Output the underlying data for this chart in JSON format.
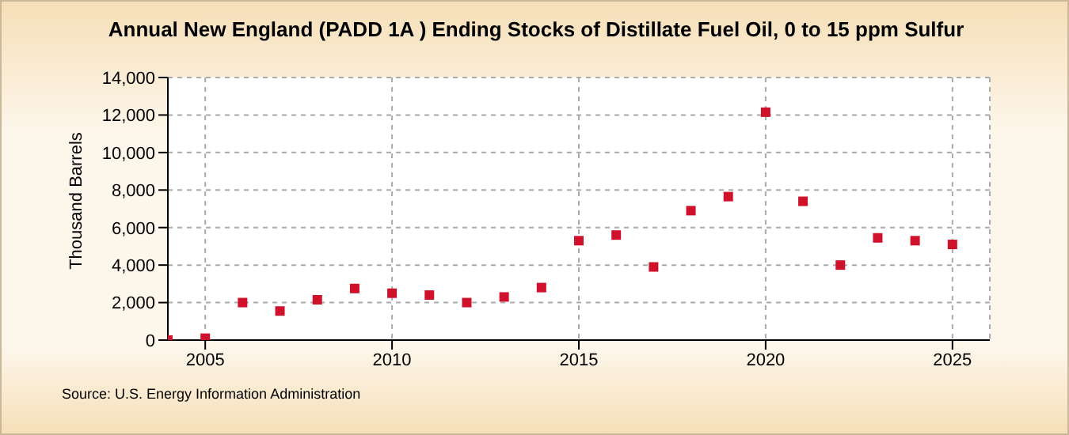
{
  "chart_data": {
    "type": "scatter",
    "title": "Annual New England (PADD 1A ) Ending Stocks of Distillate Fuel Oil, 0 to 15 ppm Sulfur",
    "ylabel": "Thousand Barrels",
    "annotations": [
      "Source: U.S. Energy Information Administration"
    ],
    "x": [
      2004,
      2005,
      2006,
      2007,
      2008,
      2009,
      2010,
      2011,
      2012,
      2013,
      2014,
      2015,
      2016,
      2017,
      2018,
      2019,
      2020,
      2021,
      2022,
      2023,
      2024,
      2025
    ],
    "series": [
      {
        "color": "#d0112b",
        "values": [
          0,
          100,
          2000,
          1550,
          2150,
          2750,
          2500,
          2400,
          2000,
          2300,
          2800,
          5300,
          5600,
          3900,
          6900,
          7650,
          12150,
          7400,
          4000,
          5450,
          5300,
          5100
        ]
      }
    ],
    "xlim": [
      2004,
      2026
    ],
    "xticks": [
      2005,
      2010,
      2015,
      2020,
      2025
    ],
    "ylim": [
      0,
      14000
    ],
    "yticks": [
      0,
      {
        "value": 2000,
        "label": "2,000"
      },
      {
        "value": 4000,
        "label": "4,000"
      },
      {
        "value": 6000,
        "label": "6,000"
      },
      {
        "value": 8000,
        "label": "8,000"
      },
      {
        "value": 10000,
        "label": "10,000"
      },
      {
        "value": 12000,
        "label": "12,000"
      },
      {
        "value": 14000,
        "label": "14,000"
      }
    ],
    "grid": true,
    "marker": "square",
    "legend": false
  }
}
